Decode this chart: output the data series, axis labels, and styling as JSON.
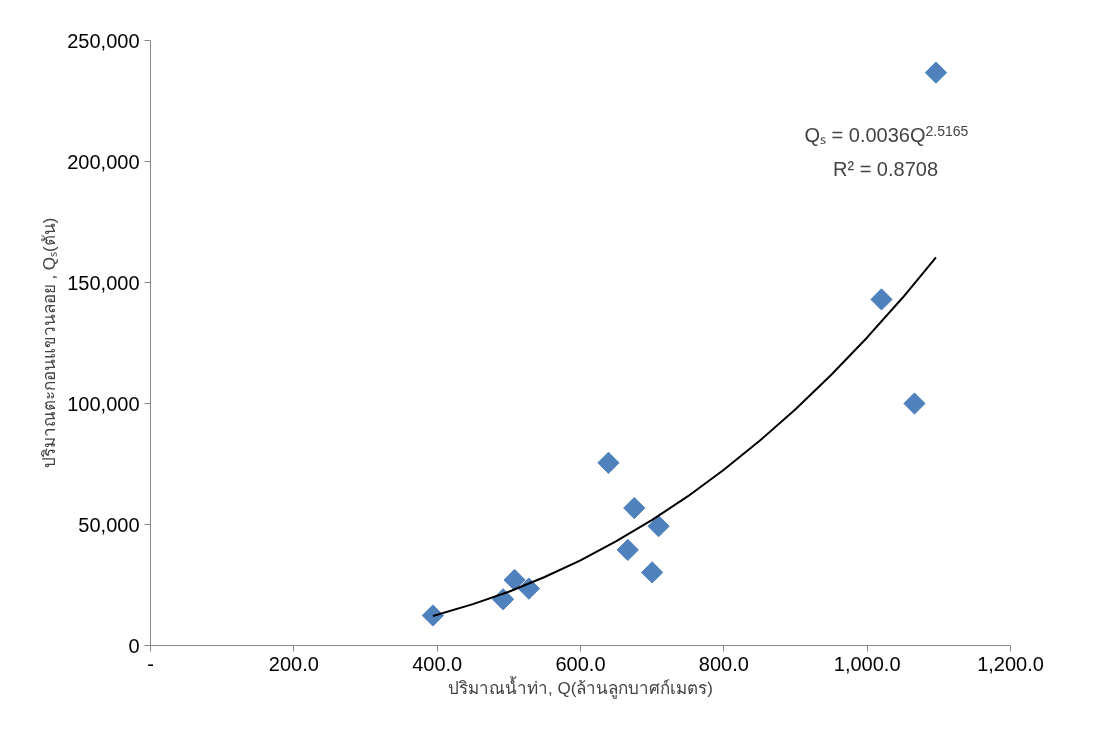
{
  "chart_data": {
    "type": "scatter",
    "xlabel": "ปริมาณน้ำท่า, Q(ล้านลูกบาศก์เมตร)",
    "ylabel": "ปริมาณตะกอนแขวนลอย , Qₛ(ตัน)",
    "annotations": [
      "Qₛ = 0.0036Q$^{2.5165}$",
      "R² = 0.8708"
    ],
    "marker": "diamond",
    "grid": false,
    "xlim": [
      0,
      1200
    ],
    "ylim": [
      0,
      250000
    ],
    "xticks": [
      {
        "value": 0,
        "label": "-"
      },
      {
        "value": 200,
        "label": "200.0"
      },
      {
        "value": 400,
        "label": "400.0"
      },
      {
        "value": 600,
        "label": "600.0"
      },
      {
        "value": 800,
        "label": "800.0"
      },
      {
        "value": 1000,
        "label": "1,000.0"
      },
      {
        "value": 1200,
        "label": "1,200.0"
      }
    ],
    "yticks": [
      {
        "value": 0,
        "label": "0"
      },
      {
        "value": 50000,
        "label": "50,000"
      },
      {
        "value": 100000,
        "label": "100,000"
      },
      {
        "value": 150000,
        "label": "150,000"
      },
      {
        "value": 200000,
        "label": "200,000"
      },
      {
        "value": 250000,
        "label": "250,000"
      }
    ],
    "series": [
      {
        "color": "#4f81bd",
        "x": [
          394,
          492,
          508,
          528,
          639,
          666,
          675,
          700,
          709,
          1020,
          1066,
          1096
        ],
        "values": [
          12400,
          19100,
          27100,
          23500,
          75500,
          39500,
          56800,
          30200,
          49300,
          143000,
          100000,
          236700
        ]
      },
      {
        "type": "line",
        "color": "#000000",
        "marker": "none",
        "x": [
          394,
          450,
          500,
          550,
          600,
          650,
          700,
          750,
          800,
          850,
          900,
          950,
          1000,
          1050,
          1096
        ],
        "values": [
          12200,
          17100,
          22200,
          28300,
          35200,
          43100,
          51900,
          61700,
          72600,
          84600,
          97600,
          111900,
          127300,
          143900,
          160400
        ]
      }
    ]
  }
}
